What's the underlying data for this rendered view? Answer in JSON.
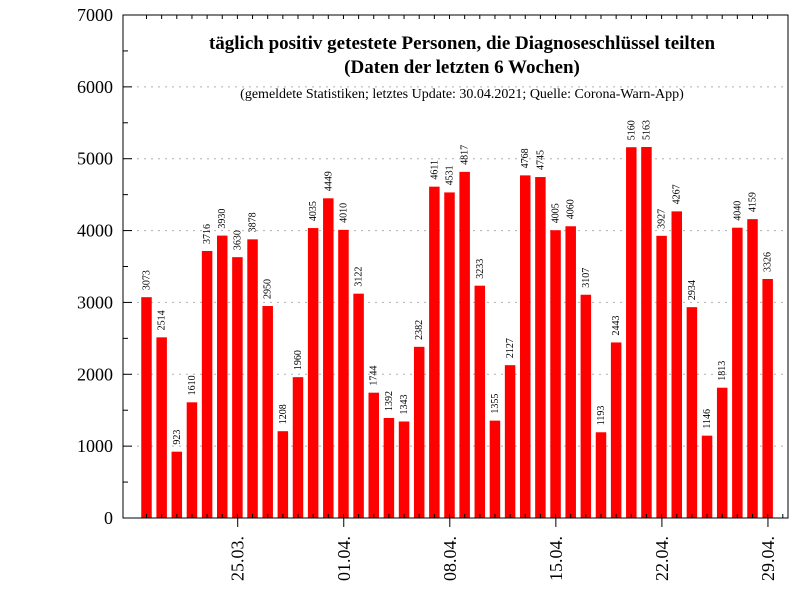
{
  "chart_data": {
    "type": "bar",
    "title": "täglich positiv getestete Personen, die Diagnoseschlüssel teilten",
    "title_line2": "(Daten der letzten 6 Wochen)",
    "subtitle": "(gemeldete Statistiken; letztes Update: 30.04.2021; Quelle: Corona-Warn-App)",
    "xlabel": "",
    "ylabel": "",
    "ylim": [
      0,
      7000
    ],
    "yticks": [
      "0",
      "1000",
      "2000",
      "3000",
      "4000",
      "5000",
      "6000",
      "7000"
    ],
    "grid": "horizontal dotted",
    "bar_color": "#ff0000",
    "x_tick_labels": [
      {
        "day_index": 6,
        "label": "25.03."
      },
      {
        "day_index": 13,
        "label": "01.04."
      },
      {
        "day_index": 20,
        "label": "08.04."
      },
      {
        "day_index": 27,
        "label": "15.04."
      },
      {
        "day_index": 34,
        "label": "22.04."
      },
      {
        "day_index": 41,
        "label": "29.04."
      }
    ],
    "values": [
      3073,
      2514,
      923,
      1610,
      3716,
      3930,
      3630,
      3878,
      2950,
      1208,
      1960,
      4035,
      4449,
      4010,
      3122,
      1744,
      1392,
      1343,
      2382,
      4611,
      4531,
      4817,
      3233,
      1355,
      2127,
      4768,
      4745,
      4005,
      4060,
      3107,
      1193,
      2443,
      5160,
      5163,
      3927,
      4267,
      2934,
      1146,
      1813,
      4040,
      4159,
      3326
    ]
  }
}
